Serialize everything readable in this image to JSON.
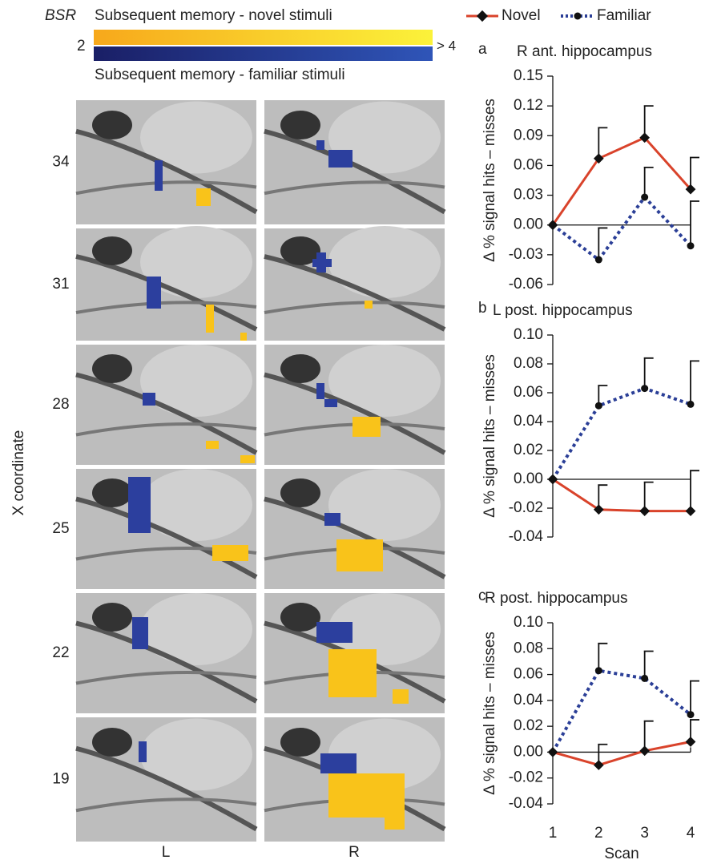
{
  "brain_figure": {
    "scale_label": "BSR",
    "novel_label": "Subsequent memory - novel stimuli",
    "familiar_label": "Subsequent memory - familiar stimuli",
    "scale_min": 2,
    "scale_max": "> 4",
    "y_label": "X coordinate",
    "rows": [
      34,
      31,
      28,
      25,
      22,
      19
    ],
    "columns": [
      "L",
      "R"
    ]
  },
  "chart_data": [
    {
      "type": "line",
      "panel": "a",
      "title": "R ant. hippocampus",
      "ylabel": "Δ % signal hits – misses",
      "x": [
        1,
        2,
        3,
        4
      ],
      "xlim": [
        1,
        4
      ],
      "ylim": [
        -0.06,
        0.15
      ],
      "yticks": [
        -0.06,
        -0.03,
        {
          "value": 0,
          "label": "0.00"
        },
        0.03,
        0.06,
        0.09,
        0.12,
        0.15
      ],
      "series": [
        {
          "name": "Novel",
          "color": "#d9432b",
          "style": "solid",
          "marker": "diamond",
          "values": [
            0,
            0.067,
            0.088,
            0.036
          ],
          "errors": [
            null,
            0.031,
            0.032,
            0.032
          ]
        },
        {
          "name": "Familiar",
          "color": "#2b3f97",
          "style": "dotted",
          "marker": "circle",
          "values": [
            0,
            -0.035,
            0.028,
            -0.021
          ],
          "errors": [
            null,
            0.032,
            0.03,
            0.045
          ]
        }
      ]
    },
    {
      "type": "line",
      "panel": "b",
      "title": "L post. hippocampus",
      "ylabel": "Δ % signal hits – misses",
      "x": [
        1,
        2,
        3,
        4
      ],
      "xlim": [
        1,
        4
      ],
      "ylim": [
        -0.04,
        0.1
      ],
      "yticks": [
        -0.04,
        -0.02,
        {
          "value": 0,
          "label": "0.00"
        },
        0.02,
        0.04,
        0.06,
        0.08,
        {
          "value": 0.1,
          "label": "0.10"
        }
      ],
      "series": [
        {
          "color": "#d9432b",
          "style": "solid",
          "marker": "diamond",
          "values": [
            0,
            -0.021,
            -0.022,
            -0.022
          ],
          "errors": [
            null,
            0.017,
            0.02,
            0.028
          ]
        },
        {
          "color": "#2b3f97",
          "style": "dotted",
          "marker": "circle",
          "values": [
            0,
            0.051,
            0.063,
            0.052
          ],
          "errors": [
            null,
            0.014,
            0.021,
            0.03
          ]
        }
      ]
    },
    {
      "type": "line",
      "panel": "c",
      "title": "R post. hippocampus",
      "ylabel": "Δ % signal hits – misses",
      "xlabel": "Scan",
      "x": [
        1,
        2,
        3,
        4
      ],
      "xlim": [
        1,
        4
      ],
      "xticks": [
        1,
        2,
        3,
        4
      ],
      "ylim": [
        -0.04,
        0.1
      ],
      "yticks": [
        -0.04,
        -0.02,
        {
          "value": 0,
          "label": "0.00"
        },
        0.02,
        0.04,
        0.06,
        0.08,
        {
          "value": 0.1,
          "label": "0.10"
        }
      ],
      "series": [
        {
          "color": "#d9432b",
          "style": "solid",
          "marker": "diamond",
          "values": [
            0,
            -0.01,
            0.001,
            0.008
          ],
          "errors": [
            null,
            0.016,
            0.023,
            0.017
          ]
        },
        {
          "color": "#2b3f97",
          "style": "dotted",
          "marker": "circle",
          "values": [
            0,
            0.063,
            0.057,
            0.029
          ],
          "errors": [
            null,
            0.021,
            0.021,
            0.026
          ]
        }
      ]
    }
  ]
}
